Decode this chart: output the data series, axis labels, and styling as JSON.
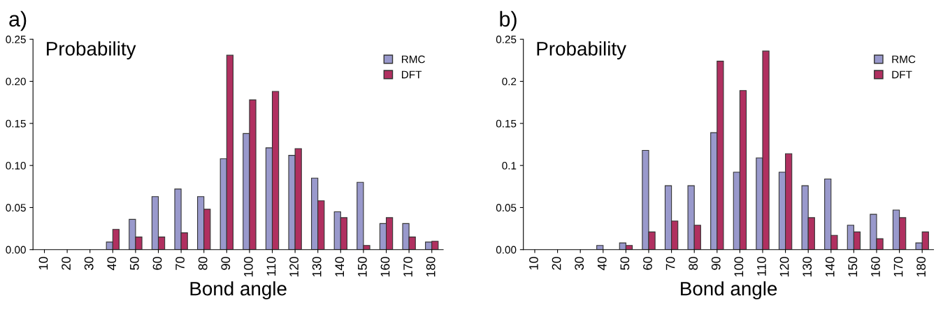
{
  "chart_data": [
    {
      "type": "bar",
      "title": "a)",
      "ylabel": "Probability",
      "xlabel": "Bond angle",
      "categories": [
        "10",
        "20",
        "30",
        "40",
        "50",
        "60",
        "70",
        "80",
        "90",
        "100",
        "110",
        "120",
        "130",
        "140",
        "150",
        "160",
        "170",
        "180"
      ],
      "series": [
        {
          "name": "RMC",
          "color": "#9999cc",
          "values": [
            0,
            0,
            0,
            0.009,
            0.036,
            0.063,
            0.072,
            0.063,
            0.108,
            0.138,
            0.121,
            0.112,
            0.085,
            0.045,
            0.08,
            0.031,
            0.031,
            0.009
          ]
        },
        {
          "name": "DFT",
          "color": "#b03060",
          "values": [
            0,
            0,
            0,
            0.024,
            0.015,
            0.015,
            0.02,
            0.048,
            0.231,
            0.178,
            0.188,
            0.12,
            0.058,
            0.038,
            0.005,
            0.038,
            0.015,
            0.01
          ]
        }
      ],
      "ylim": [
        0,
        0.25
      ],
      "yticks": [
        {
          "value": 0,
          "label": "0.00"
        },
        {
          "value": 0.05,
          "label": "0.05"
        },
        {
          "value": 0.1,
          "label": "0.10"
        },
        {
          "value": 0.15,
          "label": "0.15"
        },
        {
          "value": 0.2,
          "label": "0.20"
        },
        {
          "value": 0.25,
          "label": "0.25"
        }
      ],
      "legend": "top right",
      "grid": false
    },
    {
      "type": "bar",
      "title": "b)",
      "ylabel": "Probability",
      "xlabel": "Bond angle",
      "categories": [
        "10",
        "20",
        "30",
        "40",
        "50",
        "60",
        "70",
        "80",
        "90",
        "100",
        "110",
        "120",
        "130",
        "140",
        "150",
        "160",
        "170",
        "180"
      ],
      "series": [
        {
          "name": "RMC",
          "color": "#9999cc",
          "values": [
            0,
            0,
            0,
            0.005,
            0.008,
            0.118,
            0.076,
            0.076,
            0.139,
            0.092,
            0.109,
            0.092,
            0.076,
            0.084,
            0.029,
            0.042,
            0.047,
            0.008
          ]
        },
        {
          "name": "DFT",
          "color": "#b03060",
          "values": [
            0,
            0,
            0,
            0,
            0.005,
            0.021,
            0.034,
            0.029,
            0.224,
            0.189,
            0.236,
            0.114,
            0.038,
            0.017,
            0.021,
            0.013,
            0.038,
            0.021
          ]
        }
      ],
      "ylim": [
        0,
        0.25
      ],
      "yticks": [
        {
          "value": 0,
          "label": "0.00"
        },
        {
          "value": 0.05,
          "label": "0.05"
        },
        {
          "value": 0.1,
          "label": "0.1"
        },
        {
          "value": 0.15,
          "label": "0.15"
        },
        {
          "value": 0.2,
          "label": "0.2"
        },
        {
          "value": 0.25,
          "label": "0.25"
        }
      ],
      "legend": "top right",
      "grid": false
    }
  ]
}
